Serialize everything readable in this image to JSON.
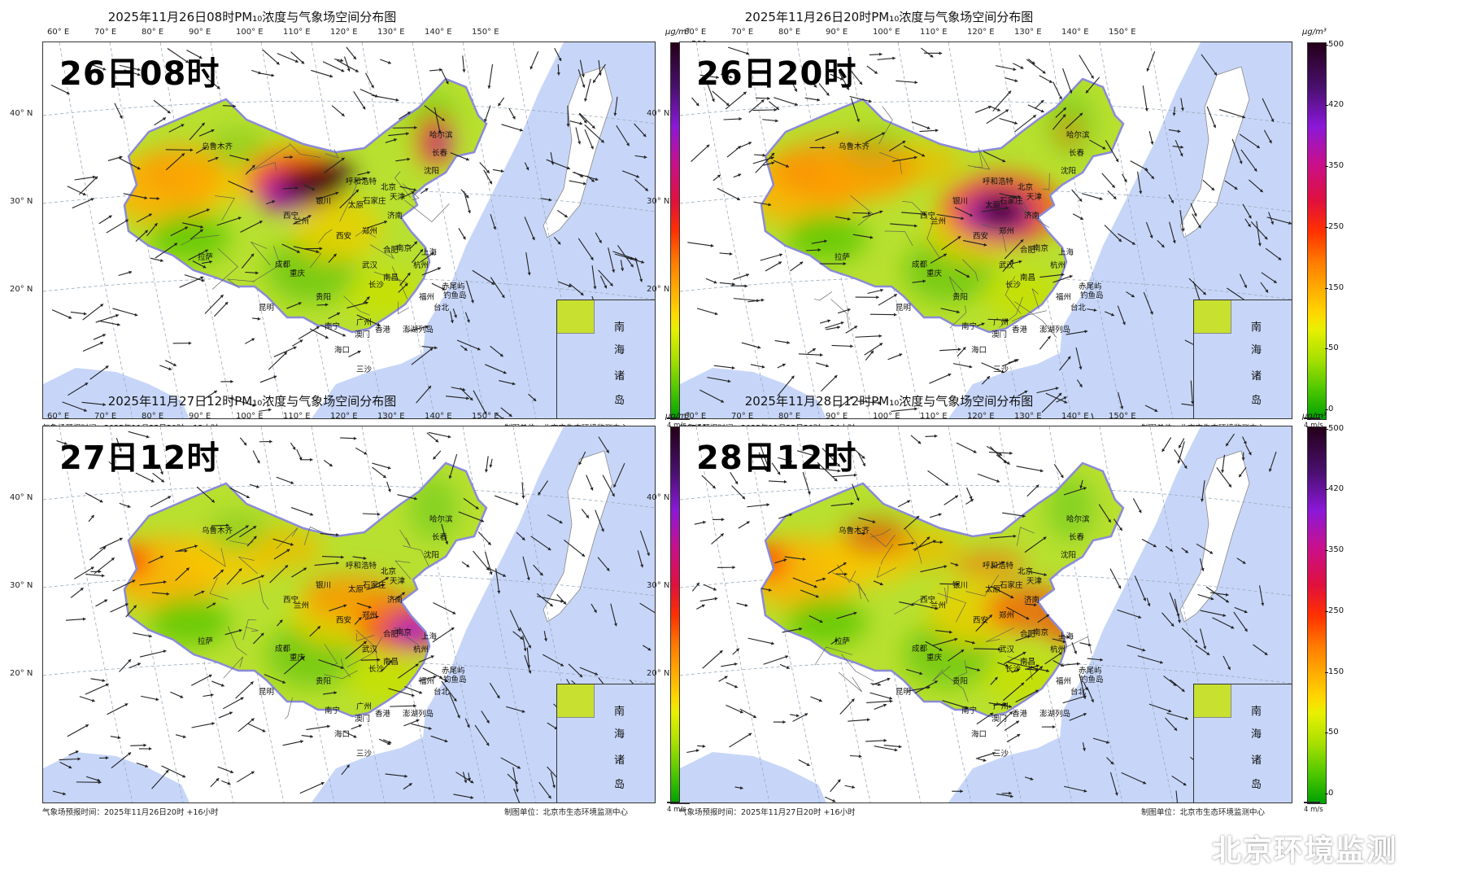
{
  "panels": [
    {
      "title": "2025年11月26日08时PM₁₀浓度与气象场空间分布图",
      "label": "26日08时",
      "footer_left": "气象场预报时间：2025年11月25日20时 +12小时",
      "hotspot": "north"
    },
    {
      "title": "2025年11月26日20时PM₁₀浓度与气象场空间分布图",
      "label": "26日20时",
      "footer_left": "气象场预报时间：2025年11月25日20时 +24小时",
      "hotspot": "central"
    },
    {
      "title": "2025年11月27日12时PM₁₀浓度与气象场空间分布图",
      "label": "27日12时",
      "footer_left": "气象场预报时间：2025年11月26日20时 +16小时",
      "hotspot": "east"
    },
    {
      "title": "2025年11月28日12时PM₁₀浓度与气象场空间分布图",
      "label": "28日12时",
      "footer_left": "气象场预报时间：2025年11月27日20时 +16小时",
      "hotspot": "moderate"
    }
  ],
  "common": {
    "footer_right": "制图单位：北京市生态环境监测中心",
    "unit": "μg/m³",
    "wind_key": "4 m/s",
    "lon_labels": [
      "60° E",
      "70° E",
      "80° E",
      "90° E",
      "100° E",
      "110° E",
      "120° E",
      "130° E",
      "140° E",
      "150° E"
    ],
    "lat_labels": [
      "40° N",
      "30° N",
      "20° N"
    ],
    "colorbar_ticks": [
      "500",
      "420",
      "350",
      "250",
      "150",
      "50",
      "0"
    ],
    "inset_labels": [
      "南",
      "海",
      "诸",
      "岛"
    ],
    "cities": [
      {
        "name": "乌鲁木齐"
      },
      {
        "name": "哈尔滨"
      },
      {
        "name": "长春"
      },
      {
        "name": "沈阳"
      },
      {
        "name": "呼和浩特"
      },
      {
        "name": "北京"
      },
      {
        "name": "天津"
      },
      {
        "name": "银川"
      },
      {
        "name": "太原"
      },
      {
        "name": "石家庄"
      },
      {
        "name": "西宁"
      },
      {
        "name": "兰州"
      },
      {
        "name": "济南"
      },
      {
        "name": "郑州"
      },
      {
        "name": "西安"
      },
      {
        "name": "合肥"
      },
      {
        "name": "南京"
      },
      {
        "name": "上海"
      },
      {
        "name": "拉萨"
      },
      {
        "name": "成都"
      },
      {
        "name": "武汉"
      },
      {
        "name": "杭州"
      },
      {
        "name": "重庆"
      },
      {
        "name": "南昌"
      },
      {
        "name": "长沙"
      },
      {
        "name": "贵阳"
      },
      {
        "name": "福州"
      },
      {
        "name": "赤尾屿"
      },
      {
        "name": "钓鱼岛"
      },
      {
        "name": "台北"
      },
      {
        "name": "昆明"
      },
      {
        "name": "广州"
      },
      {
        "name": "澎湖列岛"
      },
      {
        "name": "南宁"
      },
      {
        "name": "澳门"
      },
      {
        "name": "香港"
      },
      {
        "name": "海口"
      },
      {
        "name": "三沙"
      }
    ],
    "colors": {
      "sea": "#c7d6f8",
      "land_outside": "#ffffff"
    }
  },
  "watermark": "北京环境监测"
}
